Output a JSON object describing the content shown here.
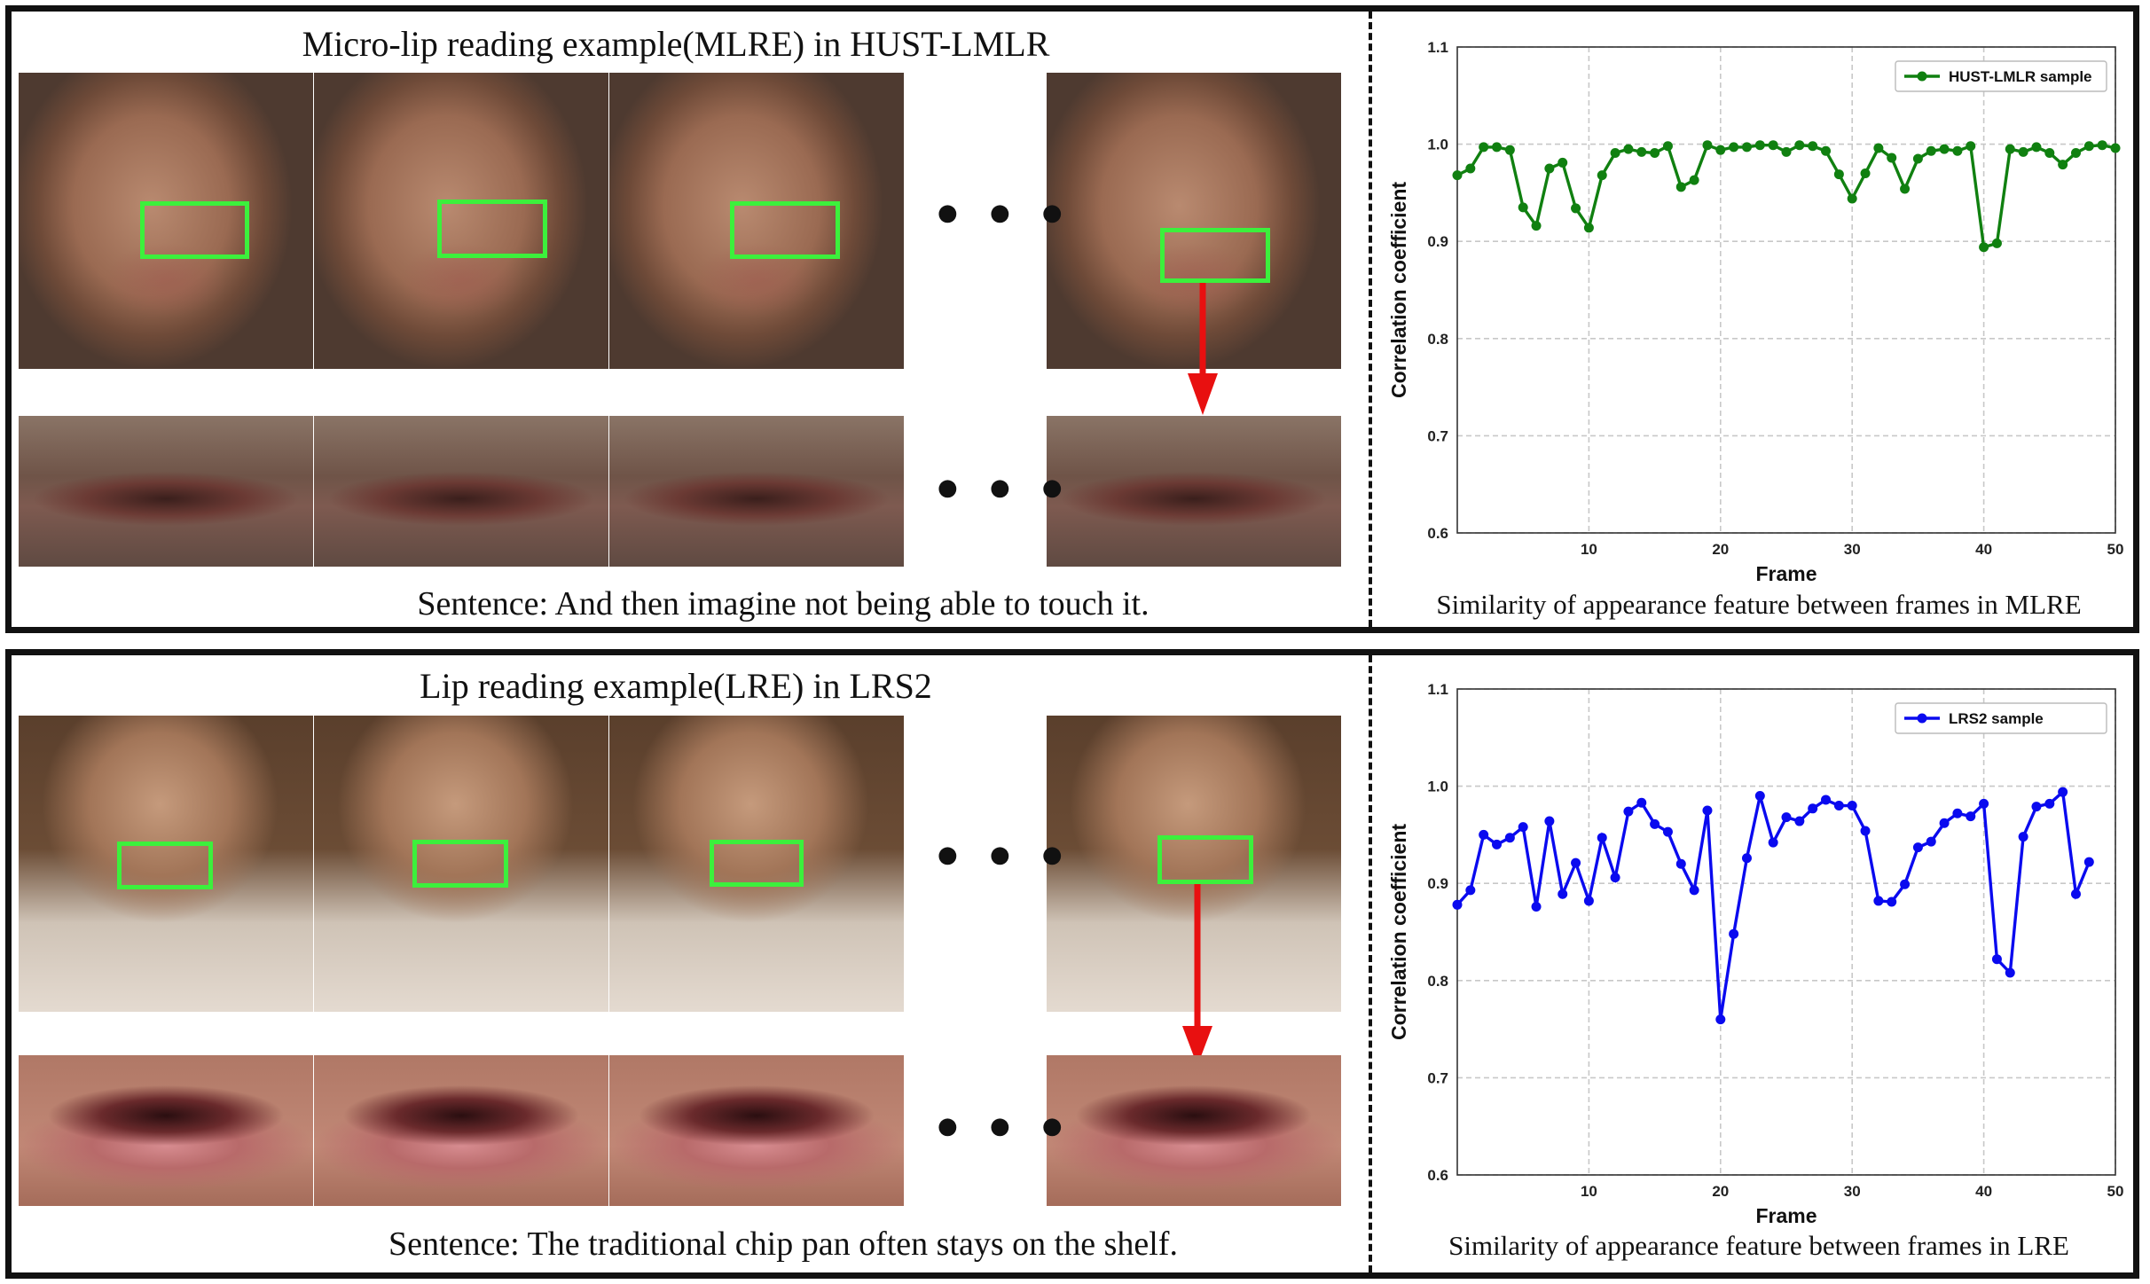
{
  "top": {
    "title": "Micro-lip reading example(MLRE) in HUST-LMLR",
    "sentence": "Sentence: And then imagine not being able to touch it.",
    "chart_caption": "Similarity of appearance feature between frames in MLRE",
    "ellipsis_top": "● ● ●",
    "ellipsis_bottom": "● ● ●"
  },
  "bottom": {
    "title": "Lip reading example(LRE) in LRS2",
    "sentence": "Sentence: The traditional chip pan often stays on the shelf.",
    "chart_caption": "Similarity of appearance feature between frames in LRE",
    "ellipsis_top": "● ● ●",
    "ellipsis_bottom": "● ● ●"
  },
  "colors": {
    "green_series": "#108010",
    "blue_series": "#0a0aef",
    "roi_box": "#3cf03c",
    "arrow": "#e81010"
  },
  "chart_data": [
    {
      "type": "line",
      "title": "",
      "xlabel": "Frame",
      "ylabel": "Correlation coefficient",
      "xlim": [
        0,
        50
      ],
      "ylim": [
        0.6,
        1.1
      ],
      "xticks": [
        "10",
        "20",
        "30",
        "40",
        "50"
      ],
      "yticks": [
        "0.6",
        "0.7",
        "0.8",
        "0.9",
        "1.0",
        "1.1"
      ],
      "grid": true,
      "legend_position": "top-right",
      "series": [
        {
          "name": "HUST-LMLR sample",
          "color": "#108010",
          "x": [
            0,
            1,
            2,
            3,
            4,
            5,
            6,
            7,
            8,
            9,
            10,
            11,
            12,
            13,
            14,
            15,
            16,
            17,
            18,
            19,
            20,
            21,
            22,
            23,
            24,
            25,
            26,
            27,
            28,
            29,
            30,
            31,
            32,
            33,
            34,
            35,
            36,
            37,
            38,
            39,
            40,
            41,
            42,
            43,
            44,
            45,
            46,
            47,
            48,
            49,
            50
          ],
          "y": [
            0.968,
            0.975,
            0.997,
            0.997,
            0.994,
            0.935,
            0.916,
            0.975,
            0.981,
            0.934,
            0.914,
            0.968,
            0.991,
            0.995,
            0.992,
            0.991,
            0.998,
            0.956,
            0.963,
            0.999,
            0.994,
            0.997,
            0.997,
            0.999,
            0.999,
            0.992,
            0.999,
            0.998,
            0.993,
            0.969,
            0.944,
            0.97,
            0.996,
            0.986,
            0.954,
            0.985,
            0.993,
            0.995,
            0.993,
            0.998,
            0.894,
            0.898,
            0.995,
            0.992,
            0.997,
            0.991,
            0.979,
            0.991,
            0.998,
            0.999,
            0.996
          ]
        }
      ]
    },
    {
      "type": "line",
      "title": "",
      "xlabel": "Frame",
      "ylabel": "Correlation coefficient",
      "xlim": [
        0,
        50
      ],
      "ylim": [
        0.6,
        1.1
      ],
      "xticks": [
        "10",
        "20",
        "30",
        "40",
        "50"
      ],
      "yticks": [
        "0.6",
        "0.7",
        "0.8",
        "0.9",
        "1.0",
        "1.1"
      ],
      "grid": true,
      "legend_position": "top-right",
      "series": [
        {
          "name": "LRS2 sample",
          "color": "#0a0aef",
          "x": [
            0,
            1,
            2,
            3,
            4,
            5,
            6,
            7,
            8,
            9,
            10,
            11,
            12,
            13,
            14,
            15,
            16,
            17,
            18,
            19,
            20,
            21,
            22,
            23,
            24,
            25,
            26,
            27,
            28,
            29,
            30,
            31,
            32,
            33,
            34,
            35,
            36,
            37,
            38,
            39,
            40,
            41,
            42,
            43,
            44,
            45,
            46,
            47,
            48
          ],
          "y": [
            0.878,
            0.893,
            0.95,
            0.94,
            0.947,
            0.958,
            0.876,
            0.964,
            0.889,
            0.921,
            0.882,
            0.947,
            0.906,
            0.974,
            0.983,
            0.961,
            0.953,
            0.92,
            0.893,
            0.975,
            0.76,
            0.848,
            0.926,
            0.99,
            0.942,
            0.968,
            0.964,
            0.977,
            0.986,
            0.98,
            0.98,
            0.954,
            0.882,
            0.881,
            0.899,
            0.937,
            0.943,
            0.962,
            0.972,
            0.969,
            0.982,
            0.822,
            0.808,
            0.948,
            0.979,
            0.982,
            0.994,
            0.889,
            0.922
          ]
        }
      ]
    }
  ]
}
